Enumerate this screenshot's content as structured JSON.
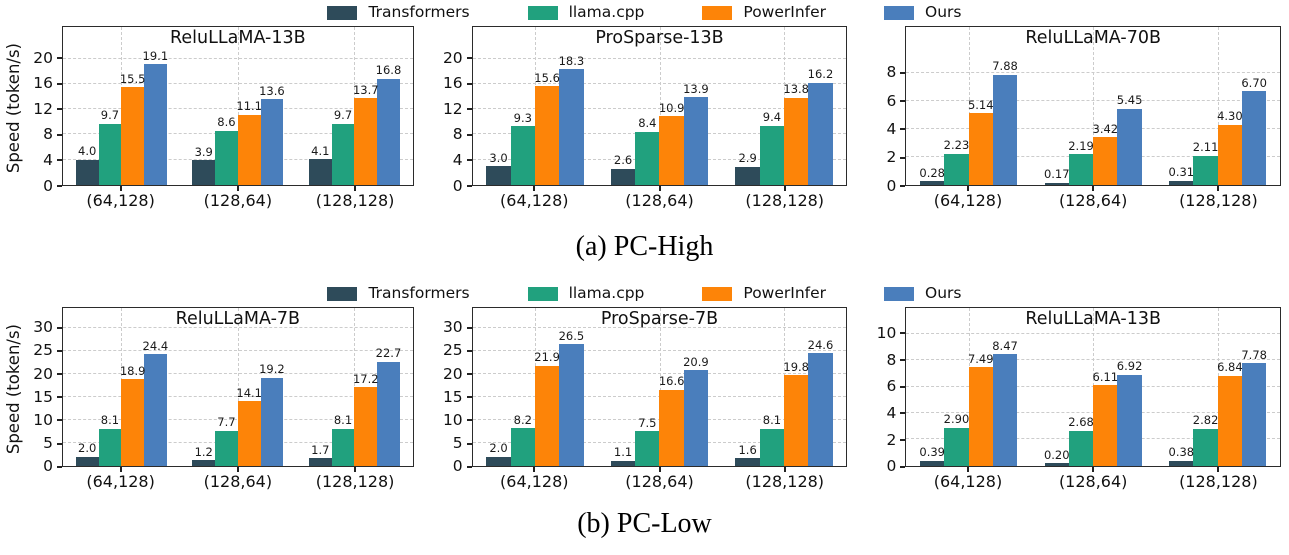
{
  "figure": {
    "background": "#ffffff"
  },
  "colors": {
    "transformers": "#2e4b5a",
    "llama_cpp": "#21a17e",
    "powerinfer": "#fd8408",
    "ours": "#4a7ebc",
    "grid": "#cccccc",
    "axis": "#2b2b2b"
  },
  "legend": {
    "position": "top-center",
    "entries": [
      {
        "label": "Transformers",
        "color": "#2e4b5a"
      },
      {
        "label": "llama.cpp",
        "color": "#21a17e"
      },
      {
        "label": "PowerInfer",
        "color": "#fd8408"
      },
      {
        "label": "Ours",
        "color": "#4a7ebc"
      }
    ]
  },
  "captions": {
    "a": "(a) PC-High",
    "b": "(b) PC-Low"
  },
  "chart_data": [
    {
      "id": "pc-high-relullama-13b",
      "row": "a",
      "type": "bar",
      "title": "ReluLLaMA-13B",
      "ylabel": "Speed (token/s)",
      "xlabel": "",
      "categories": [
        "(64,128)",
        "(128,64)",
        "(128,128)"
      ],
      "yticks": [
        0,
        4,
        8,
        12,
        16,
        20
      ],
      "ylim": [
        0,
        25
      ],
      "grid": true,
      "series": [
        {
          "name": "Transformers",
          "color": "#2e4b5a",
          "values": [
            4.0,
            3.9,
            4.1
          ],
          "labels": [
            "4.0",
            "3.9",
            "4.1"
          ]
        },
        {
          "name": "llama.cpp",
          "color": "#21a17e",
          "values": [
            9.7,
            8.6,
            9.7
          ],
          "labels": [
            "9.7",
            "8.6",
            "9.7"
          ]
        },
        {
          "name": "PowerInfer",
          "color": "#fd8408",
          "values": [
            15.5,
            11.1,
            13.7
          ],
          "labels": [
            "15.5",
            "11.1",
            "13.7"
          ]
        },
        {
          "name": "Ours",
          "color": "#4a7ebc",
          "values": [
            19.1,
            13.6,
            16.8
          ],
          "labels": [
            "19.1",
            "13.6",
            "16.8"
          ]
        }
      ]
    },
    {
      "id": "pc-high-prosparse-13b",
      "row": "a",
      "type": "bar",
      "title": "ProSparse-13B",
      "ylabel": "",
      "xlabel": "",
      "categories": [
        "(64,128)",
        "(128,64)",
        "(128,128)"
      ],
      "yticks": [
        0,
        4,
        8,
        12,
        16,
        20
      ],
      "ylim": [
        0,
        25
      ],
      "grid": true,
      "series": [
        {
          "name": "Transformers",
          "color": "#2e4b5a",
          "values": [
            3.0,
            2.6,
            2.9
          ],
          "labels": [
            "3.0",
            "2.6",
            "2.9"
          ]
        },
        {
          "name": "llama.cpp",
          "color": "#21a17e",
          "values": [
            9.3,
            8.4,
            9.4
          ],
          "labels": [
            "9.3",
            "8.4",
            "9.4"
          ]
        },
        {
          "name": "PowerInfer",
          "color": "#fd8408",
          "values": [
            15.6,
            10.9,
            13.8
          ],
          "labels": [
            "15.6",
            "10.9",
            "13.8"
          ]
        },
        {
          "name": "Ours",
          "color": "#4a7ebc",
          "values": [
            18.3,
            13.9,
            16.2
          ],
          "labels": [
            "18.3",
            "13.9",
            "16.2"
          ]
        }
      ]
    },
    {
      "id": "pc-high-relullama-70b",
      "row": "a",
      "type": "bar",
      "title": "ReluLLaMA-70B",
      "ylabel": "",
      "xlabel": "",
      "categories": [
        "(64,128)",
        "(128,64)",
        "(128,128)"
      ],
      "yticks": [
        0,
        2,
        4,
        6,
        8
      ],
      "ylim": [
        0,
        11.3
      ],
      "grid": true,
      "series": [
        {
          "name": "Transformers",
          "color": "#2e4b5a",
          "values": [
            0.28,
            0.17,
            0.31
          ],
          "labels": [
            "0.28",
            "0.17",
            "0.31"
          ]
        },
        {
          "name": "llama.cpp",
          "color": "#21a17e",
          "values": [
            2.23,
            2.19,
            2.11
          ],
          "labels": [
            "2.23",
            "2.19",
            "2.11"
          ]
        },
        {
          "name": "PowerInfer",
          "color": "#fd8408",
          "values": [
            5.14,
            3.42,
            4.3
          ],
          "labels": [
            "5.14",
            "3.42",
            "4.30"
          ]
        },
        {
          "name": "Ours",
          "color": "#4a7ebc",
          "values": [
            7.88,
            5.45,
            6.7
          ],
          "labels": [
            "7.88",
            "5.45",
            "6.70"
          ]
        }
      ]
    },
    {
      "id": "pc-low-relullama-7b",
      "row": "b",
      "type": "bar",
      "title": "ReluLLaMA-7B",
      "ylabel": "Speed (token/s)",
      "xlabel": "",
      "categories": [
        "(64,128)",
        "(128,64)",
        "(128,128)"
      ],
      "yticks": [
        0,
        5,
        10,
        15,
        20,
        25,
        30
      ],
      "ylim": [
        0,
        34.5
      ],
      "grid": true,
      "series": [
        {
          "name": "Transformers",
          "color": "#2e4b5a",
          "values": [
            2.0,
            1.2,
            1.7
          ],
          "labels": [
            "2.0",
            "1.2",
            "1.7"
          ]
        },
        {
          "name": "llama.cpp",
          "color": "#21a17e",
          "values": [
            8.1,
            7.7,
            8.1
          ],
          "labels": [
            "8.1",
            "7.7",
            "8.1"
          ]
        },
        {
          "name": "PowerInfer",
          "color": "#fd8408",
          "values": [
            18.9,
            14.1,
            17.2
          ],
          "labels": [
            "18.9",
            "14.1",
            "17.2"
          ]
        },
        {
          "name": "Ours",
          "color": "#4a7ebc",
          "values": [
            24.4,
            19.2,
            22.7
          ],
          "labels": [
            "24.4",
            "19.2",
            "22.7"
          ]
        }
      ]
    },
    {
      "id": "pc-low-prosparse-7b",
      "row": "b",
      "type": "bar",
      "title": "ProSparse-7B",
      "ylabel": "",
      "xlabel": "",
      "categories": [
        "(64,128)",
        "(128,64)",
        "(128,128)"
      ],
      "yticks": [
        0,
        5,
        10,
        15,
        20,
        25,
        30
      ],
      "ylim": [
        0,
        34.5
      ],
      "grid": true,
      "series": [
        {
          "name": "Transformers",
          "color": "#2e4b5a",
          "values": [
            2.0,
            1.1,
            1.6
          ],
          "labels": [
            "2.0",
            "1.1",
            "1.6"
          ]
        },
        {
          "name": "llama.cpp",
          "color": "#21a17e",
          "values": [
            8.2,
            7.5,
            8.1
          ],
          "labels": [
            "8.2",
            "7.5",
            "8.1"
          ]
        },
        {
          "name": "PowerInfer",
          "color": "#fd8408",
          "values": [
            21.9,
            16.6,
            19.8
          ],
          "labels": [
            "21.9",
            "16.6",
            "19.8"
          ]
        },
        {
          "name": "Ours",
          "color": "#4a7ebc",
          "values": [
            26.5,
            20.9,
            24.6
          ],
          "labels": [
            "26.5",
            "20.9",
            "24.6"
          ]
        }
      ]
    },
    {
      "id": "pc-low-relullama-13b",
      "row": "b",
      "type": "bar",
      "title": "ReluLLaMA-13B",
      "ylabel": "",
      "xlabel": "",
      "categories": [
        "(64,128)",
        "(128,64)",
        "(128,128)"
      ],
      "yticks": [
        0,
        2,
        4,
        6,
        8,
        10
      ],
      "ylim": [
        0,
        12
      ],
      "grid": true,
      "series": [
        {
          "name": "Transformers",
          "color": "#2e4b5a",
          "values": [
            0.39,
            0.2,
            0.38
          ],
          "labels": [
            "0.39",
            "0.20",
            "0.38"
          ]
        },
        {
          "name": "llama.cpp",
          "color": "#21a17e",
          "values": [
            2.9,
            2.68,
            2.82
          ],
          "labels": [
            "2.90",
            "2.68",
            "2.82"
          ]
        },
        {
          "name": "PowerInfer",
          "color": "#fd8408",
          "values": [
            7.49,
            6.11,
            6.84
          ],
          "labels": [
            "7.49",
            "6.11",
            "6.84"
          ]
        },
        {
          "name": "Ours",
          "color": "#4a7ebc",
          "values": [
            8.47,
            6.92,
            7.78
          ],
          "labels": [
            "8.47",
            "6.92",
            "7.78"
          ]
        }
      ]
    }
  ]
}
